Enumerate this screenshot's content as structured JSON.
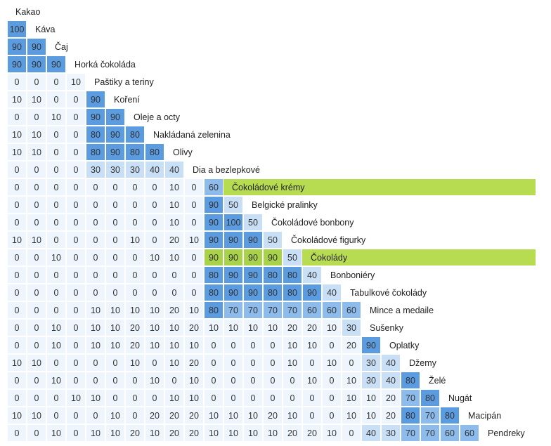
{
  "chart_data": {
    "type": "heatmap",
    "title": "",
    "layout": "lower-triangular",
    "categories": [
      "Kakao",
      "Káva",
      "Čaj",
      "Horká čokoláda",
      "Paštiky a teriny",
      "Koření",
      "Oleje a octy",
      "Nakládaná zelenina",
      "Olivy",
      "Dia a bezlepkové",
      "Čokoládové krémy",
      "Belgické pralinky",
      "Čokoládové bonbony",
      "Čokoládové figurky",
      "Čokolády",
      "Bonboniéry",
      "Tabulkové čokolády",
      "Mince a medaile",
      "Sušenky",
      "Oplatky",
      "Džemy",
      "Želé",
      "Nugát",
      "Macipán",
      "Pendreky"
    ],
    "highlighted_rows": [
      "Čokoládové krémy",
      "Čokolády"
    ],
    "rows": [
      [],
      [
        100
      ],
      [
        90,
        90
      ],
      [
        90,
        90,
        90
      ],
      [
        0,
        0,
        0,
        10
      ],
      [
        10,
        10,
        0,
        0,
        90
      ],
      [
        0,
        0,
        10,
        0,
        90,
        90
      ],
      [
        10,
        10,
        0,
        0,
        80,
        90,
        80
      ],
      [
        10,
        10,
        0,
        0,
        80,
        90,
        80,
        80
      ],
      [
        0,
        0,
        0,
        0,
        30,
        30,
        30,
        40,
        40
      ],
      [
        0,
        0,
        0,
        0,
        0,
        0,
        0,
        0,
        10,
        0
      ],
      [
        0,
        0,
        0,
        0,
        0,
        0,
        0,
        0,
        10,
        0,
        90
      ],
      [
        0,
        0,
        0,
        0,
        0,
        0,
        0,
        0,
        10,
        0,
        90,
        100
      ],
      [
        10,
        10,
        0,
        0,
        0,
        0,
        10,
        0,
        20,
        10,
        90,
        90,
        90
      ],
      [
        0,
        0,
        10,
        0,
        0,
        0,
        0,
        10,
        10,
        0,
        90,
        90,
        90,
        90
      ],
      [
        0,
        0,
        0,
        0,
        0,
        0,
        0,
        0,
        0,
        0,
        80,
        90,
        90,
        80,
        80
      ],
      [
        0,
        0,
        0,
        0,
        0,
        0,
        0,
        0,
        0,
        0,
        80,
        90,
        90,
        80,
        80,
        90
      ],
      [
        0,
        0,
        0,
        0,
        10,
        10,
        10,
        10,
        20,
        10,
        80,
        70,
        70,
        70,
        70,
        60,
        60
      ],
      [
        0,
        0,
        10,
        0,
        10,
        10,
        20,
        10,
        10,
        20,
        10,
        10,
        10,
        10,
        20,
        20,
        10,
        30
      ],
      [
        0,
        0,
        10,
        0,
        10,
        10,
        20,
        10,
        10,
        10,
        0,
        0,
        0,
        0,
        10,
        10,
        0,
        20,
        90
      ],
      [
        10,
        10,
        0,
        0,
        0,
        0,
        10,
        0,
        10,
        20,
        0,
        0,
        0,
        0,
        10,
        0,
        10,
        0,
        30,
        40
      ],
      [
        0,
        0,
        10,
        0,
        0,
        0,
        0,
        10,
        0,
        10,
        0,
        0,
        0,
        0,
        0,
        10,
        0,
        10,
        30,
        40,
        80
      ],
      [
        0,
        0,
        0,
        10,
        10,
        0,
        0,
        0,
        10,
        10,
        0,
        0,
        0,
        0,
        0,
        0,
        0,
        10,
        10,
        20,
        70,
        80
      ],
      [
        10,
        10,
        0,
        0,
        0,
        10,
        0,
        20,
        20,
        20,
        10,
        10,
        10,
        20,
        10,
        0,
        0,
        10,
        10,
        20,
        80,
        70,
        80
      ],
      [
        0,
        0,
        10,
        0,
        10,
        10,
        20,
        10,
        20,
        20,
        10,
        10,
        10,
        10,
        20,
        20,
        10,
        0,
        40,
        30,
        70,
        70,
        60,
        60
      ]
    ],
    "diagonal_values": [
      60,
      50,
      50,
      50,
      50,
      40,
      40,
      60
    ],
    "diagonal_row_indices": [
      10,
      11,
      12,
      13,
      14,
      15,
      16,
      17
    ]
  },
  "colors": {
    "strong": "#5b9be0",
    "medium": "#8cbbec",
    "light": "#c8dff6",
    "faint": "#eef5fc",
    "highlight_band": "#b7dc52",
    "highlight_cell": "#a7d24a",
    "text": "#333333"
  }
}
